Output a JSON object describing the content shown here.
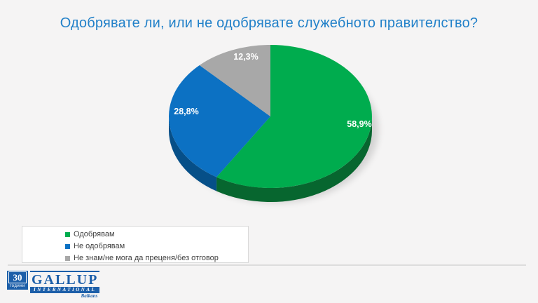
{
  "theme": {
    "background": "#F5F4F4",
    "title_blue": "#2281C9",
    "logo_blue": "#1D5FA9"
  },
  "chart_data": {
    "type": "pie",
    "style": "3d",
    "title": "Одобрявате ли, или не одобрявате служебното правителство?",
    "legend_position": "bottom-left",
    "start_angle_deg": 0,
    "direction": "clockwise",
    "slices": [
      {
        "id": "approve",
        "label": "Одобрявам",
        "value": 58.9,
        "pct_label": "58,9%",
        "color": "#00AC4E",
        "side_color": "#07662F"
      },
      {
        "id": "disapprove",
        "label": "Не одобрявам",
        "value": 28.8,
        "pct_label": "28,8%",
        "color": "#0C71C3",
        "side_color": "#064F88"
      },
      {
        "id": "no-answer",
        "label": "Не знам/не мога да преценя/без отговор",
        "value": 12.3,
        "pct_label": "12,3%",
        "color": "#A8A8A8",
        "side_color": "#7F7F7F"
      }
    ]
  },
  "logo": {
    "badge_number": "30",
    "badge_caption": "години",
    "brand": "GALLUP",
    "brand_sub": "INTERNATIONAL",
    "region": "Balkans"
  }
}
